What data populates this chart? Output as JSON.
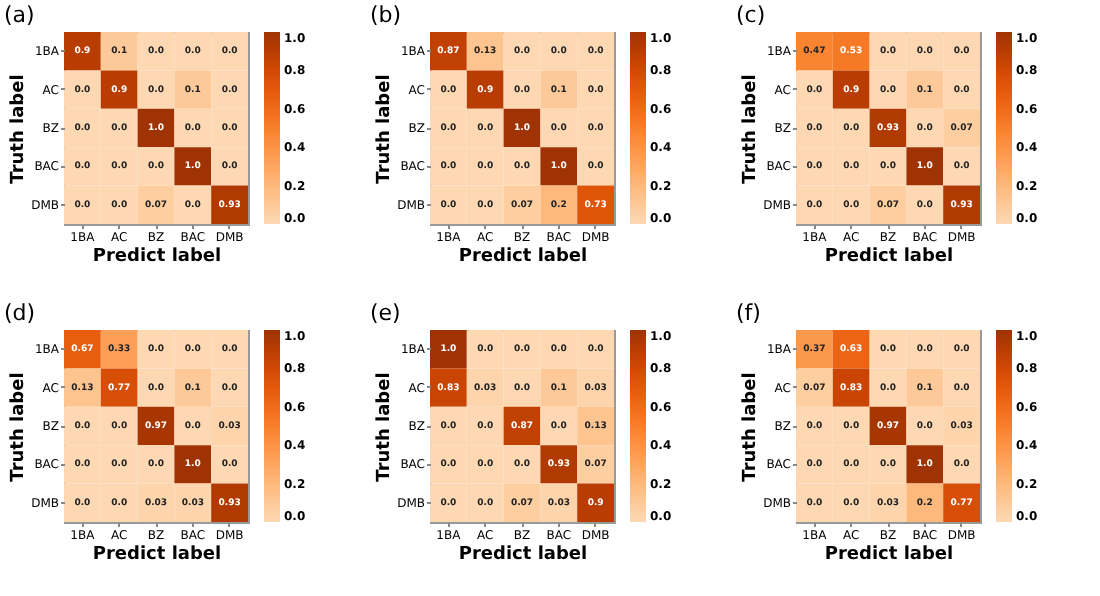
{
  "chart_data": [
    {
      "type": "heatmap",
      "title": "(a)",
      "xlabel": "Predict label",
      "ylabel": "Truth label",
      "categories": [
        "1BA",
        "AC",
        "BZ",
        "BAC",
        "DMB"
      ],
      "y_categories": [
        "1BA",
        "AC",
        "BZ",
        "BAC",
        "DMB"
      ],
      "cells": [
        [
          0.9,
          0.1,
          0,
          0,
          0
        ],
        [
          0,
          0.9,
          0,
          0.1,
          0
        ],
        [
          0,
          0,
          1,
          0,
          0
        ],
        [
          0,
          0,
          0,
          1,
          0
        ],
        [
          0,
          0,
          0.07,
          0,
          0.93
        ]
      ],
      "cell_labels": [
        [
          "0.9",
          "0.1",
          "0.0",
          "0.0",
          "0.0"
        ],
        [
          "0.0",
          "0.9",
          "0.0",
          "0.1",
          "0.0"
        ],
        [
          "0.0",
          "0.0",
          "1.0",
          "0.0",
          "0.0"
        ],
        [
          "0.0",
          "0.0",
          "0.0",
          "1.0",
          "0.0"
        ],
        [
          "0.0",
          "0.0",
          "0.07",
          "0.0",
          "0.93"
        ]
      ],
      "clim": [
        0,
        1
      ],
      "cticks": [
        {
          "value": 0,
          "label": "0.0"
        },
        {
          "value": 0.2,
          "label": "0.2"
        },
        {
          "value": 0.4,
          "label": "0.4"
        },
        {
          "value": 0.6,
          "label": "0.6"
        },
        {
          "value": 0.8,
          "label": "0.8"
        },
        {
          "value": 1,
          "label": "1.0"
        }
      ]
    },
    {
      "type": "heatmap",
      "title": "(b)",
      "xlabel": "Predict label",
      "ylabel": "Truth label",
      "categories": [
        "1BA",
        "AC",
        "BZ",
        "BAC",
        "DMB"
      ],
      "y_categories": [
        "1BA",
        "AC",
        "BZ",
        "BAC",
        "DMB"
      ],
      "cells": [
        [
          0.87,
          0.13,
          0,
          0,
          0
        ],
        [
          0,
          0.9,
          0,
          0.1,
          0
        ],
        [
          0,
          0,
          1,
          0,
          0
        ],
        [
          0,
          0,
          0,
          1,
          0
        ],
        [
          0,
          0,
          0.07,
          0.2,
          0.73
        ]
      ],
      "cell_labels": [
        [
          "0.87",
          "0.13",
          "0.0",
          "0.0",
          "0.0"
        ],
        [
          "0.0",
          "0.9",
          "0.0",
          "0.1",
          "0.0"
        ],
        [
          "0.0",
          "0.0",
          "1.0",
          "0.0",
          "0.0"
        ],
        [
          "0.0",
          "0.0",
          "0.0",
          "1.0",
          "0.0"
        ],
        [
          "0.0",
          "0.0",
          "0.07",
          "0.2",
          "0.73"
        ]
      ],
      "clim": [
        0,
        1
      ],
      "cticks": [
        {
          "value": 0,
          "label": "0.0"
        },
        {
          "value": 0.2,
          "label": "0.2"
        },
        {
          "value": 0.4,
          "label": "0.4"
        },
        {
          "value": 0.6,
          "label": "0.6"
        },
        {
          "value": 0.8,
          "label": "0.8"
        },
        {
          "value": 1,
          "label": "1.0"
        }
      ]
    },
    {
      "type": "heatmap",
      "title": "(c)",
      "xlabel": "Predict label",
      "ylabel": "Truth label",
      "categories": [
        "1BA",
        "AC",
        "BZ",
        "BAC",
        "DMB"
      ],
      "y_categories": [
        "1BA",
        "AC",
        "BZ",
        "BAC",
        "DMB"
      ],
      "cells": [
        [
          0.47,
          0.53,
          0,
          0,
          0
        ],
        [
          0,
          0.9,
          0,
          0.1,
          0
        ],
        [
          0,
          0,
          0.93,
          0,
          0.07
        ],
        [
          0,
          0,
          0,
          1,
          0
        ],
        [
          0,
          0,
          0.07,
          0,
          0.93
        ]
      ],
      "cell_labels": [
        [
          "0.47",
          "0.53",
          "0.0",
          "0.0",
          "0.0"
        ],
        [
          "0.0",
          "0.9",
          "0.0",
          "0.1",
          "0.0"
        ],
        [
          "0.0",
          "0.0",
          "0.93",
          "0.0",
          "0.07"
        ],
        [
          "0.0",
          "0.0",
          "0.0",
          "1.0",
          "0.0"
        ],
        [
          "0.0",
          "0.0",
          "0.07",
          "0.0",
          "0.93"
        ]
      ],
      "clim": [
        0,
        1
      ],
      "cticks": [
        {
          "value": 0,
          "label": "0.0"
        },
        {
          "value": 0.2,
          "label": "0.2"
        },
        {
          "value": 0.4,
          "label": "0.4"
        },
        {
          "value": 0.6,
          "label": "0.6"
        },
        {
          "value": 0.8,
          "label": "0.8"
        },
        {
          "value": 1,
          "label": "1.0"
        }
      ]
    },
    {
      "type": "heatmap",
      "title": "(d)",
      "xlabel": "Predict label",
      "ylabel": "Truth label",
      "categories": [
        "1BA",
        "AC",
        "BZ",
        "BAC",
        "DMB"
      ],
      "y_categories": [
        "1BA",
        "AC",
        "BZ",
        "BAC",
        "DMB"
      ],
      "cells": [
        [
          0.67,
          0.33,
          0,
          0,
          0
        ],
        [
          0.13,
          0.77,
          0,
          0.1,
          0
        ],
        [
          0,
          0,
          0.97,
          0,
          0.03
        ],
        [
          0,
          0,
          0,
          1,
          0
        ],
        [
          0,
          0,
          0.03,
          0.03,
          0.93
        ]
      ],
      "cell_labels": [
        [
          "0.67",
          "0.33",
          "0.0",
          "0.0",
          "0.0"
        ],
        [
          "0.13",
          "0.77",
          "0.0",
          "0.1",
          "0.0"
        ],
        [
          "0.0",
          "0.0",
          "0.97",
          "0.0",
          "0.03"
        ],
        [
          "0.0",
          "0.0",
          "0.0",
          "1.0",
          "0.0"
        ],
        [
          "0.0",
          "0.0",
          "0.03",
          "0.03",
          "0.93"
        ]
      ],
      "clim": [
        0,
        1
      ],
      "cticks": [
        {
          "value": 0,
          "label": "0.0"
        },
        {
          "value": 0.2,
          "label": "0.2"
        },
        {
          "value": 0.4,
          "label": "0.4"
        },
        {
          "value": 0.6,
          "label": "0.6"
        },
        {
          "value": 0.8,
          "label": "0.8"
        },
        {
          "value": 1,
          "label": "1.0"
        }
      ]
    },
    {
      "type": "heatmap",
      "title": "(e)",
      "xlabel": "Predict label",
      "ylabel": "Truth label",
      "categories": [
        "1BA",
        "AC",
        "BZ",
        "BAC",
        "DMB"
      ],
      "y_categories": [
        "1BA",
        "AC",
        "BZ",
        "BAC",
        "DMB"
      ],
      "cells": [
        [
          1,
          0,
          0,
          0,
          0
        ],
        [
          0.83,
          0.03,
          0,
          0.1,
          0.03
        ],
        [
          0,
          0,
          0.87,
          0,
          0.13
        ],
        [
          0,
          0,
          0,
          0.93,
          0.07
        ],
        [
          0,
          0,
          0.07,
          0.03,
          0.9
        ]
      ],
      "cell_labels": [
        [
          "1.0",
          "0.0",
          "0.0",
          "0.0",
          "0.0"
        ],
        [
          "0.83",
          "0.03",
          "0.0",
          "0.1",
          "0.03"
        ],
        [
          "0.0",
          "0.0",
          "0.87",
          "0.0",
          "0.13"
        ],
        [
          "0.0",
          "0.0",
          "0.0",
          "0.93",
          "0.07"
        ],
        [
          "0.0",
          "0.0",
          "0.07",
          "0.03",
          "0.9"
        ]
      ],
      "clim": [
        0,
        1
      ],
      "cticks": [
        {
          "value": 0,
          "label": "0.0"
        },
        {
          "value": 0.2,
          "label": "0.2"
        },
        {
          "value": 0.4,
          "label": "0.4"
        },
        {
          "value": 0.6,
          "label": "0.6"
        },
        {
          "value": 0.8,
          "label": "0.8"
        },
        {
          "value": 1,
          "label": "1.0"
        }
      ]
    },
    {
      "type": "heatmap",
      "title": "(f)",
      "xlabel": "Predict label",
      "ylabel": "Truth label",
      "categories": [
        "1BA",
        "AC",
        "BZ",
        "BAC",
        "DMB"
      ],
      "y_categories": [
        "1BA",
        "AC",
        "BZ",
        "BAC",
        "DMB"
      ],
      "cells": [
        [
          0.37,
          0.63,
          0,
          0,
          0
        ],
        [
          0.07,
          0.83,
          0,
          0.1,
          0
        ],
        [
          0,
          0,
          0.97,
          0,
          0.03
        ],
        [
          0,
          0,
          0,
          1,
          0
        ],
        [
          0,
          0,
          0.03,
          0.2,
          0.77
        ]
      ],
      "cell_labels": [
        [
          "0.37",
          "0.63",
          "0.0",
          "0.0",
          "0.0"
        ],
        [
          "0.07",
          "0.83",
          "0.0",
          "0.1",
          "0.0"
        ],
        [
          "0.0",
          "0.0",
          "0.97",
          "0.0",
          "0.03"
        ],
        [
          "0.0",
          "0.0",
          "0.0",
          "1.0",
          "0.0"
        ],
        [
          "0.0",
          "0.0",
          "0.03",
          "0.2",
          "0.77"
        ]
      ],
      "clim": [
        0,
        1
      ],
      "cticks": [
        {
          "value": 0,
          "label": "0.0"
        },
        {
          "value": 0.2,
          "label": "0.2"
        },
        {
          "value": 0.4,
          "label": "0.4"
        },
        {
          "value": 0.6,
          "label": "0.6"
        },
        {
          "value": 0.8,
          "label": "0.8"
        },
        {
          "value": 1,
          "label": "1.0"
        }
      ]
    }
  ]
}
